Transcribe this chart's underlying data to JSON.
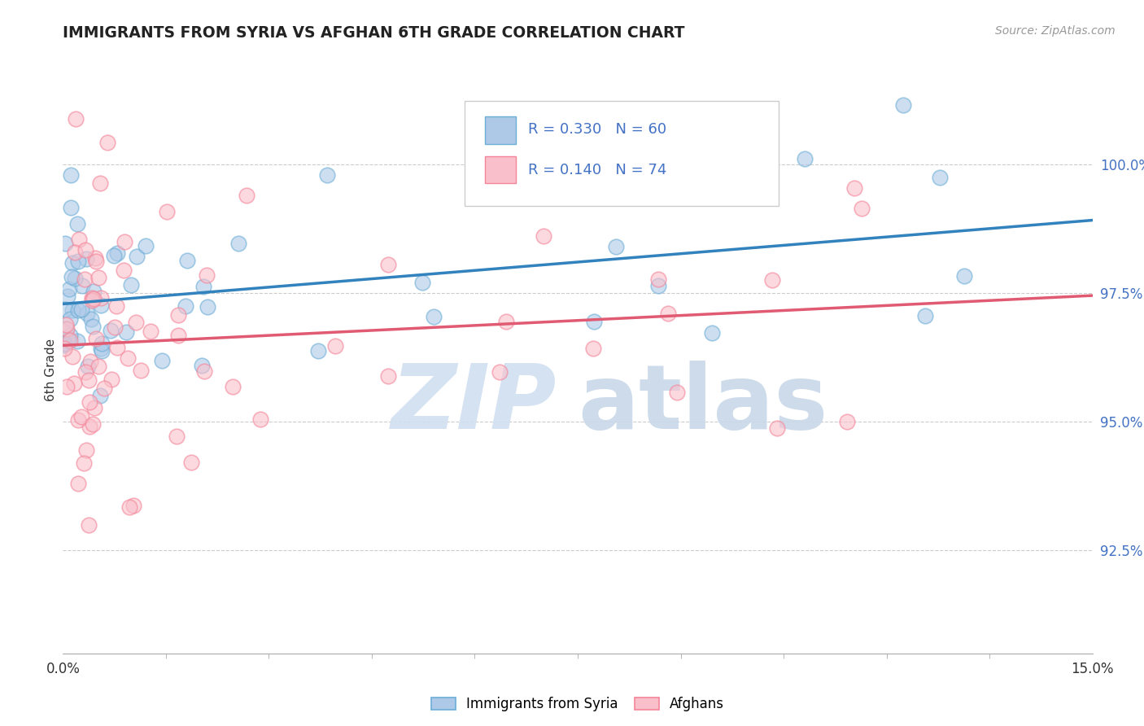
{
  "title": "IMMIGRANTS FROM SYRIA VS AFGHAN 6TH GRADE CORRELATION CHART",
  "source_text": "Source: ZipAtlas.com",
  "ylabel": "6th Grade",
  "ytick_values": [
    92.5,
    95.0,
    97.5,
    100.0
  ],
  "xlim": [
    0.0,
    15.0
  ],
  "ylim": [
    90.5,
    101.5
  ],
  "legend_r1": "R = 0.330",
  "legend_n1": "N = 60",
  "legend_r2": "R = 0.140",
  "legend_n2": "N = 74",
  "legend_label1": "Immigrants from Syria",
  "legend_label2": "Afghans",
  "blue_face": "#aec9e8",
  "blue_edge": "#6baed6",
  "blue_line": "#3182bd",
  "pink_face": "#f9c0cb",
  "pink_edge": "#f48498",
  "pink_line": "#e05a72",
  "text_blue": "#4472c4",
  "title_color": "#222222",
  "source_color": "#999999",
  "grid_color": "#cccccc",
  "watermark_zip_color": "#d0dff0",
  "watermark_atlas_color": "#c8d8e8"
}
